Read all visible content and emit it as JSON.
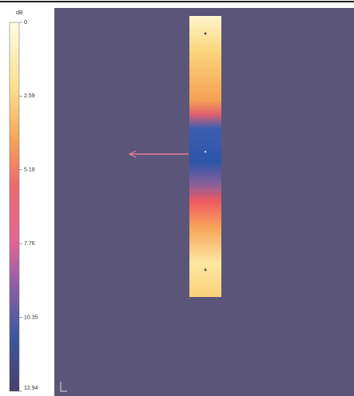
{
  "colorbar": {
    "unit": "dB",
    "labels": [
      "0",
      "2.59",
      "5.18",
      "7.76",
      "10.35",
      "12.94"
    ]
  }
}
